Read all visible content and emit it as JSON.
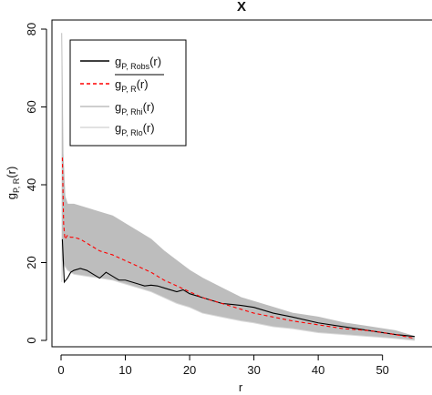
{
  "chart_data": {
    "type": "line",
    "title": "X",
    "xlabel": "r",
    "ylabel": {
      "base": "g",
      "sub": "P, R",
      "arg": "(r)"
    },
    "xlim": [
      0,
      56
    ],
    "ylim": [
      0,
      80
    ],
    "x_ticks": [
      "0",
      "10",
      "20",
      "30",
      "40",
      "50"
    ],
    "y_ticks": [
      "0",
      "20",
      "40",
      "60",
      "80"
    ],
    "grid": false,
    "legend_position": "top-left",
    "legend": [
      {
        "base": "g",
        "sub": "P, Robs",
        "arg": "(r)",
        "style": "solid",
        "color": "#000000"
      },
      {
        "base": "g",
        "sub": "P, R",
        "arg": "(r)",
        "overline": true,
        "style": "dashed",
        "color": "#ff0000"
      },
      {
        "base": "g",
        "sub": "P, Rhi",
        "arg": "(r)",
        "style": "solid",
        "color": "#bdbdbd"
      },
      {
        "base": "g",
        "sub": "P, Rlo",
        "arg": "(r)",
        "style": "solid",
        "color": "#d9d9d9"
      }
    ],
    "colors": {
      "observed": "#000000",
      "mean": "#ff0000",
      "envelope": "#bdbdbd",
      "envelope_low": "#d9d9d9"
    },
    "series": [
      {
        "role": "observed",
        "x": [
          0.2,
          0.5,
          1,
          1.5,
          2,
          3,
          4,
          5,
          6,
          7,
          8,
          9,
          10,
          11,
          12,
          13,
          14,
          15,
          16,
          17,
          18,
          19,
          20,
          22,
          25,
          28,
          30,
          33,
          36,
          40,
          44,
          48,
          52,
          55
        ],
        "y": [
          26,
          15,
          16,
          17.5,
          18,
          18.5,
          18,
          17,
          16,
          17.5,
          16.5,
          15.5,
          15.5,
          15,
          14.5,
          14,
          14.2,
          14,
          13.5,
          13,
          12.5,
          13,
          12,
          11,
          9.5,
          9,
          8.5,
          7,
          6,
          4.5,
          3.5,
          2.5,
          1.5,
          1
        ]
      },
      {
        "role": "mean",
        "x": [
          0.2,
          0.4,
          0.6,
          1,
          1.5,
          2,
          3,
          4,
          5,
          6,
          8,
          10,
          12,
          14,
          16,
          18,
          20,
          22,
          24,
          26,
          28,
          30,
          33,
          36,
          40,
          44,
          48,
          52,
          55
        ],
        "y": [
          47,
          30,
          26,
          27,
          26.5,
          26.5,
          26,
          25,
          24,
          23,
          22,
          20.5,
          19,
          17.5,
          15.5,
          14,
          12.5,
          11,
          10,
          9,
          8,
          7,
          6,
          5,
          4,
          3,
          2.5,
          1.5,
          0.5
        ]
      },
      {
        "role": "envelope-high",
        "x": [
          0.1,
          0.3,
          0.6,
          1,
          2,
          4,
          6,
          8,
          10,
          12,
          14,
          16,
          18,
          20,
          22,
          25,
          28,
          30,
          33,
          36,
          40,
          44,
          48,
          52,
          55
        ],
        "y": [
          79,
          48,
          37,
          35,
          35,
          34,
          33,
          32,
          30,
          28,
          26,
          23,
          20.5,
          18,
          16,
          13.5,
          11,
          10,
          8.5,
          7,
          6,
          4.5,
          3.5,
          2.5,
          1
        ]
      },
      {
        "role": "envelope-low",
        "x": [
          0.1,
          0.3,
          0.6,
          1,
          2,
          4,
          6,
          8,
          10,
          12,
          14,
          16,
          18,
          20,
          22,
          25,
          28,
          30,
          33,
          36,
          40,
          44,
          48,
          52,
          55
        ],
        "y": [
          15,
          20,
          19,
          18,
          17,
          16.5,
          16,
          15.5,
          14.5,
          13.5,
          12.5,
          11,
          9.5,
          8.5,
          7,
          6,
          5,
          4.5,
          3.5,
          3,
          2,
          1.5,
          1,
          0.5,
          0
        ]
      }
    ]
  }
}
